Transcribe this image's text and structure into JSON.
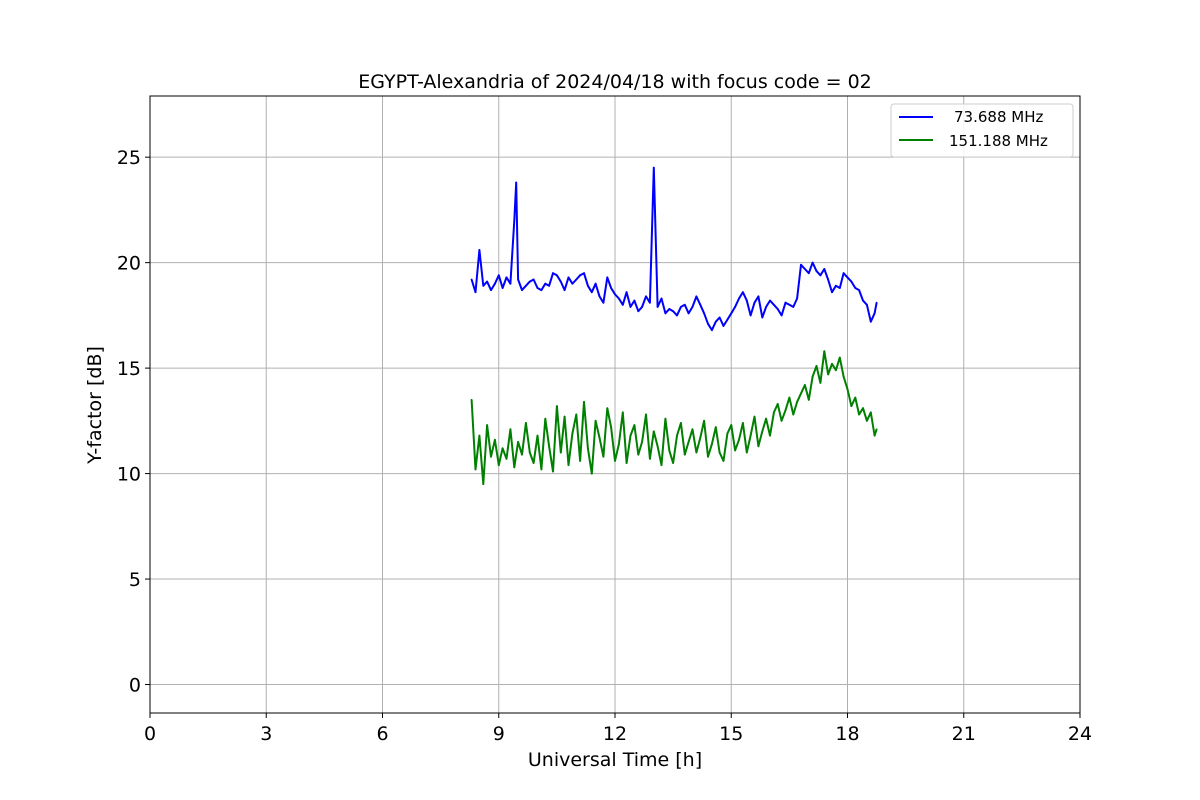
{
  "chart_data": {
    "type": "line",
    "title": "EGYPT-Alexandria of 2024/04/18 with focus code = 02",
    "xlabel": "Universal Time [h]",
    "ylabel": "Y-factor [dB]",
    "xlim": [
      0,
      24
    ],
    "ylim": [
      -1.35,
      27.9
    ],
    "xticks": [
      0,
      3,
      6,
      9,
      12,
      15,
      18,
      21,
      24
    ],
    "yticks": [
      0,
      5,
      10,
      15,
      20,
      25
    ],
    "grid": true,
    "legend_position": "upper right",
    "series": [
      {
        "name": "73.688 MHz",
        "color": "#0000ff",
        "x": [
          8.3,
          8.4,
          8.5,
          8.6,
          8.7,
          8.8,
          8.9,
          9.0,
          9.1,
          9.2,
          9.3,
          9.4,
          9.45,
          9.5,
          9.6,
          9.7,
          9.8,
          9.9,
          10.0,
          10.1,
          10.2,
          10.3,
          10.4,
          10.5,
          10.6,
          10.7,
          10.8,
          10.9,
          11.0,
          11.1,
          11.2,
          11.3,
          11.4,
          11.5,
          11.6,
          11.7,
          11.8,
          11.9,
          12.0,
          12.1,
          12.2,
          12.3,
          12.4,
          12.5,
          12.6,
          12.7,
          12.8,
          12.9,
          13.0,
          13.1,
          13.2,
          13.3,
          13.4,
          13.5,
          13.6,
          13.7,
          13.8,
          13.9,
          14.0,
          14.1,
          14.2,
          14.3,
          14.4,
          14.5,
          14.6,
          14.7,
          14.8,
          14.9,
          15.0,
          15.1,
          15.2,
          15.3,
          15.4,
          15.5,
          15.6,
          15.7,
          15.8,
          15.9,
          16.0,
          16.1,
          16.2,
          16.3,
          16.4,
          16.5,
          16.6,
          16.7,
          16.8,
          16.9,
          17.0,
          17.1,
          17.2,
          17.3,
          17.4,
          17.5,
          17.6,
          17.7,
          17.8,
          17.9,
          18.0,
          18.1,
          18.2,
          18.3,
          18.4,
          18.5,
          18.6,
          18.7,
          18.75
        ],
        "y": [
          19.2,
          18.6,
          20.6,
          18.9,
          19.1,
          18.7,
          19.0,
          19.4,
          18.8,
          19.3,
          19.0,
          22.0,
          23.8,
          19.2,
          18.7,
          18.9,
          19.1,
          19.2,
          18.8,
          18.7,
          19.0,
          18.9,
          19.5,
          19.4,
          19.1,
          18.7,
          19.3,
          19.0,
          19.2,
          19.4,
          19.5,
          18.9,
          18.6,
          19.0,
          18.4,
          18.1,
          19.3,
          18.8,
          18.5,
          18.3,
          18.0,
          18.6,
          17.9,
          18.2,
          17.7,
          17.9,
          18.4,
          18.1,
          24.5,
          17.9,
          18.3,
          17.6,
          17.8,
          17.7,
          17.5,
          17.9,
          18.0,
          17.6,
          17.9,
          18.4,
          18.0,
          17.6,
          17.1,
          16.8,
          17.2,
          17.4,
          17.0,
          17.3,
          17.6,
          17.9,
          18.3,
          18.6,
          18.2,
          17.5,
          18.1,
          18.4,
          17.4,
          17.9,
          18.2,
          18.0,
          17.8,
          17.5,
          18.1,
          18.0,
          17.9,
          18.3,
          19.9,
          19.7,
          19.5,
          20.0,
          19.6,
          19.4,
          19.7,
          19.2,
          18.6,
          18.9,
          18.8,
          19.5,
          19.3,
          19.1,
          18.8,
          18.7,
          18.2,
          18.0,
          17.2,
          17.6,
          18.1
        ]
      },
      {
        "name": "151.188 MHz",
        "color": "#008000",
        "x": [
          8.3,
          8.4,
          8.5,
          8.6,
          8.7,
          8.8,
          8.9,
          9.0,
          9.1,
          9.2,
          9.3,
          9.4,
          9.5,
          9.6,
          9.7,
          9.8,
          9.9,
          10.0,
          10.1,
          10.2,
          10.3,
          10.4,
          10.5,
          10.6,
          10.7,
          10.8,
          10.9,
          11.0,
          11.1,
          11.2,
          11.3,
          11.4,
          11.5,
          11.6,
          11.7,
          11.8,
          11.9,
          12.0,
          12.1,
          12.2,
          12.3,
          12.4,
          12.5,
          12.6,
          12.7,
          12.8,
          12.9,
          13.0,
          13.1,
          13.2,
          13.3,
          13.4,
          13.5,
          13.6,
          13.7,
          13.8,
          13.9,
          14.0,
          14.1,
          14.2,
          14.3,
          14.4,
          14.5,
          14.6,
          14.7,
          14.8,
          14.9,
          15.0,
          15.1,
          15.2,
          15.3,
          15.4,
          15.5,
          15.6,
          15.7,
          15.8,
          15.9,
          16.0,
          16.1,
          16.2,
          16.3,
          16.4,
          16.5,
          16.6,
          16.7,
          16.8,
          16.9,
          17.0,
          17.1,
          17.2,
          17.3,
          17.4,
          17.5,
          17.6,
          17.7,
          17.8,
          17.9,
          18.0,
          18.1,
          18.2,
          18.3,
          18.4,
          18.5,
          18.6,
          18.7,
          18.75
        ],
        "y": [
          13.5,
          10.2,
          11.8,
          9.5,
          12.3,
          10.8,
          11.6,
          10.4,
          11.2,
          10.7,
          12.1,
          10.3,
          11.5,
          10.9,
          12.4,
          11.0,
          10.5,
          11.8,
          10.2,
          12.6,
          11.3,
          10.1,
          13.2,
          11.0,
          12.7,
          10.4,
          11.9,
          12.8,
          10.6,
          13.4,
          11.2,
          10.0,
          12.5,
          11.7,
          10.8,
          13.1,
          12.2,
          10.6,
          11.4,
          12.9,
          10.5,
          11.8,
          12.3,
          10.9,
          11.5,
          12.8,
          10.7,
          12.0,
          11.3,
          10.4,
          12.6,
          11.1,
          10.5,
          11.8,
          12.4,
          10.9,
          11.5,
          12.1,
          11.0,
          11.7,
          12.5,
          10.8,
          11.4,
          12.2,
          11.0,
          10.6,
          11.9,
          12.3,
          11.1,
          11.6,
          12.4,
          11.0,
          11.8,
          12.7,
          11.3,
          12.0,
          12.6,
          11.8,
          12.9,
          13.3,
          12.5,
          13.0,
          13.6,
          12.8,
          13.4,
          13.8,
          14.2,
          13.5,
          14.6,
          15.1,
          14.3,
          15.8,
          14.7,
          15.2,
          14.9,
          15.5,
          14.6,
          14.0,
          13.2,
          13.6,
          12.8,
          13.1,
          12.5,
          12.9,
          11.8,
          12.1
        ]
      }
    ]
  }
}
